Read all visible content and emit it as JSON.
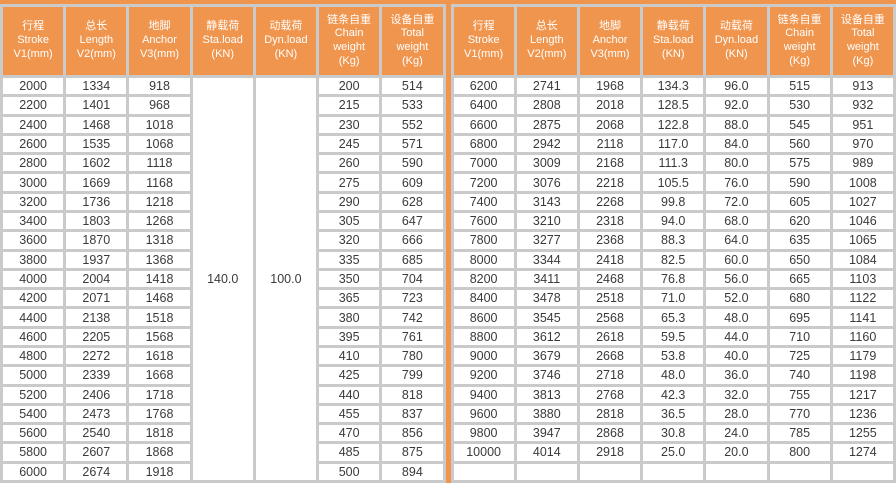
{
  "colors": {
    "accent_orange": "#f0954e",
    "grid_gray": "#cacaca",
    "cell_white": "#ffffff",
    "header_text": "#ffffff",
    "cell_text": "#3a3a3a"
  },
  "tables": [
    {
      "name": "spec-table-left",
      "columns": [
        [
          "行程",
          "Stroke",
          "V1(mm)"
        ],
        [
          "总长",
          "Length",
          "V2(mm)"
        ],
        [
          "地脚",
          "Anchor",
          "V3(mm)"
        ],
        [
          "静载荷",
          "Sta.load",
          "(KN)"
        ],
        [
          "动载荷",
          "Dyn.load",
          "(KN)"
        ],
        [
          "链条自重",
          "Chain",
          "weight",
          "(Kg)"
        ],
        [
          "设备自重",
          "Total",
          "weight",
          "(Kg)"
        ]
      ],
      "merged": [
        {
          "row": 0,
          "col": 3,
          "rowspan": 21,
          "value": "140.0"
        },
        {
          "row": 0,
          "col": 4,
          "rowspan": 21,
          "value": "100.0"
        }
      ],
      "rows": [
        [
          "2000",
          "1334",
          "918",
          "200",
          "514"
        ],
        [
          "2200",
          "1401",
          "968",
          "215",
          "533"
        ],
        [
          "2400",
          "1468",
          "1018",
          "230",
          "552"
        ],
        [
          "2600",
          "1535",
          "1068",
          "245",
          "571"
        ],
        [
          "2800",
          "1602",
          "1118",
          "260",
          "590"
        ],
        [
          "3000",
          "1669",
          "1168",
          "275",
          "609"
        ],
        [
          "3200",
          "1736",
          "1218",
          "290",
          "628"
        ],
        [
          "3400",
          "1803",
          "1268",
          "305",
          "647"
        ],
        [
          "3600",
          "1870",
          "1318",
          "320",
          "666"
        ],
        [
          "3800",
          "1937",
          "1368",
          "335",
          "685"
        ],
        [
          "4000",
          "2004",
          "1418",
          "350",
          "704"
        ],
        [
          "4200",
          "2071",
          "1468",
          "365",
          "723"
        ],
        [
          "4400",
          "2138",
          "1518",
          "380",
          "742"
        ],
        [
          "4600",
          "2205",
          "1568",
          "395",
          "761"
        ],
        [
          "4800",
          "2272",
          "1618",
          "410",
          "780"
        ],
        [
          "5000",
          "2339",
          "1668",
          "425",
          "799"
        ],
        [
          "5200",
          "2406",
          "1718",
          "440",
          "818"
        ],
        [
          "5400",
          "2473",
          "1768",
          "455",
          "837"
        ],
        [
          "5600",
          "2540",
          "1818",
          "470",
          "856"
        ],
        [
          "5800",
          "2607",
          "1868",
          "485",
          "875"
        ],
        [
          "6000",
          "2674",
          "1918",
          "500",
          "894"
        ]
      ]
    },
    {
      "name": "spec-table-right",
      "columns": [
        [
          "行程",
          "Stroke",
          "V1(mm)"
        ],
        [
          "总长",
          "Length",
          "V2(mm)"
        ],
        [
          "地脚",
          "Anchor",
          "V3(mm)"
        ],
        [
          "静载荷",
          "Sta.load",
          "(KN)"
        ],
        [
          "动载荷",
          "Dyn.load",
          "(KN)"
        ],
        [
          "链条自重",
          "Chain",
          "weight",
          "(Kg)"
        ],
        [
          "设备自重",
          "Total",
          "weight",
          "(Kg)"
        ]
      ],
      "merged": [],
      "rows": [
        [
          "6200",
          "2741",
          "1968",
          "134.3",
          "96.0",
          "515",
          "913"
        ],
        [
          "6400",
          "2808",
          "2018",
          "128.5",
          "92.0",
          "530",
          "932"
        ],
        [
          "6600",
          "2875",
          "2068",
          "122.8",
          "88.0",
          "545",
          "951"
        ],
        [
          "6800",
          "2942",
          "2118",
          "117.0",
          "84.0",
          "560",
          "970"
        ],
        [
          "7000",
          "3009",
          "2168",
          "111.3",
          "80.0",
          "575",
          "989"
        ],
        [
          "7200",
          "3076",
          "2218",
          "105.5",
          "76.0",
          "590",
          "1008"
        ],
        [
          "7400",
          "3143",
          "2268",
          "99.8",
          "72.0",
          "605",
          "1027"
        ],
        [
          "7600",
          "3210",
          "2318",
          "94.0",
          "68.0",
          "620",
          "1046"
        ],
        [
          "7800",
          "3277",
          "2368",
          "88.3",
          "64.0",
          "635",
          "1065"
        ],
        [
          "8000",
          "3344",
          "2418",
          "82.5",
          "60.0",
          "650",
          "1084"
        ],
        [
          "8200",
          "3411",
          "2468",
          "76.8",
          "56.0",
          "665",
          "1103"
        ],
        [
          "8400",
          "3478",
          "2518",
          "71.0",
          "52.0",
          "680",
          "1122"
        ],
        [
          "8600",
          "3545",
          "2568",
          "65.3",
          "48.0",
          "695",
          "1141"
        ],
        [
          "8800",
          "3612",
          "2618",
          "59.5",
          "44.0",
          "710",
          "1160"
        ],
        [
          "9000",
          "3679",
          "2668",
          "53.8",
          "40.0",
          "725",
          "1179"
        ],
        [
          "9200",
          "3746",
          "2718",
          "48.0",
          "36.0",
          "740",
          "1198"
        ],
        [
          "9400",
          "3813",
          "2768",
          "42.3",
          "32.0",
          "755",
          "1217"
        ],
        [
          "9600",
          "3880",
          "2818",
          "36.5",
          "28.0",
          "770",
          "1236"
        ],
        [
          "9800",
          "3947",
          "2868",
          "30.8",
          "24.0",
          "785",
          "1255"
        ],
        [
          "10000",
          "4014",
          "2918",
          "25.0",
          "20.0",
          "800",
          "1274"
        ],
        [
          "",
          "",
          "",
          "",
          "",
          "",
          ""
        ]
      ]
    }
  ]
}
